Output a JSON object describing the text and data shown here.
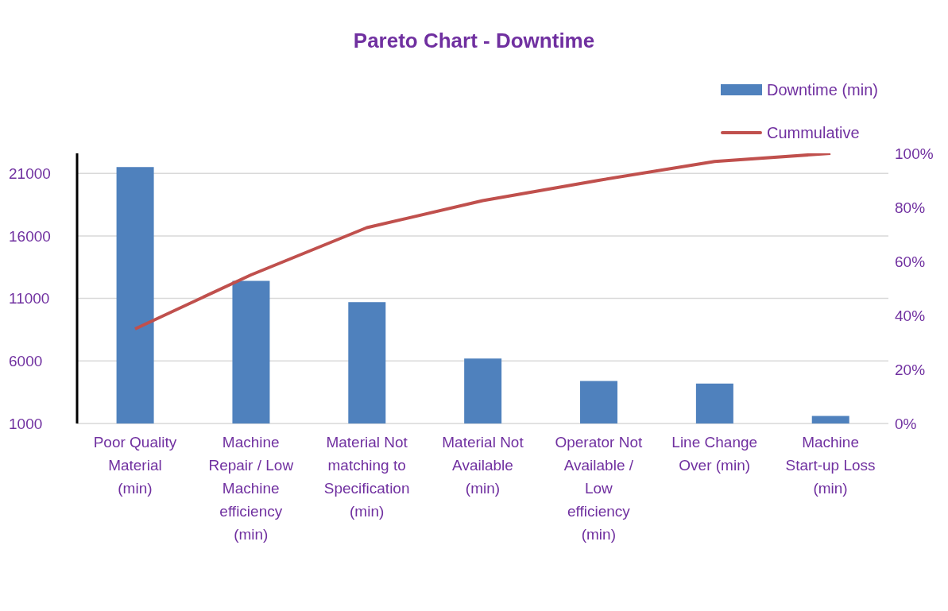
{
  "chart_data": {
    "type": "bar",
    "title": "Pareto Chart - Downtime",
    "categories": [
      "Poor Quality Material (min)",
      "Machine Repair / Low Machine efficiency (min)",
      "Material Not matching to Specification (min)",
      "Material Not Available (min)",
      "Operator Not Available / Low efficiency (min)",
      "Line Change Over (min)",
      "Machine Start-up Loss (min)"
    ],
    "series": [
      {
        "name": "Downtime (min)",
        "color": "#4f81bd",
        "values": [
          21500,
          12400,
          10700,
          6200,
          4400,
          4200,
          1600
        ]
      },
      {
        "name": "Cummulative",
        "type": "line",
        "axis": "y2",
        "color": "#c0504d",
        "values": [
          35,
          55,
          72.5,
          82.5,
          90,
          97,
          100
        ]
      }
    ],
    "ylim": [
      1000,
      22600
    ],
    "yticks": [
      1000,
      6000,
      11000,
      16000,
      21000
    ],
    "y2lim": [
      0,
      100
    ],
    "y2ticks": [
      {
        "value": 0,
        "label": "0%"
      },
      {
        "value": 20,
        "label": "20%"
      },
      {
        "value": 40,
        "label": "40%"
      },
      {
        "value": 60,
        "label": "60%"
      },
      {
        "value": 80,
        "label": "80%"
      },
      {
        "value": 100,
        "label": "100%"
      }
    ],
    "grid": "y",
    "legend": "top right",
    "marker": "none",
    "line_style": "solid"
  }
}
